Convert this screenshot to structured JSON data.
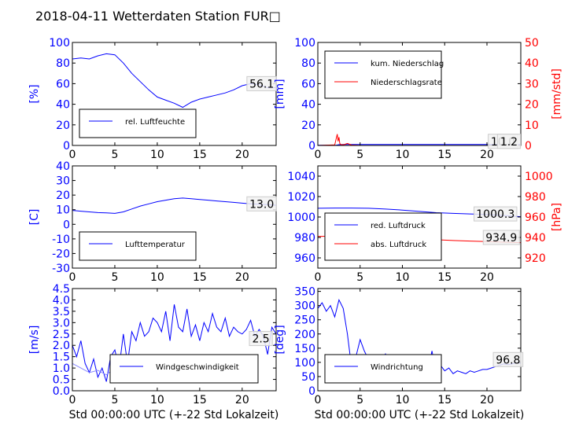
{
  "title": "2018-04-11 Wetterdaten Station FUR□",
  "xlabel": "Std 00:00:00 UTC (+-22 Std Lokalzeit)",
  "colors": {
    "left": "#0000ff",
    "right": "#ff0000",
    "light": "#8888ff"
  },
  "chart_data": [
    {
      "type": "line",
      "ylabel": "[%]",
      "xlim": [
        0,
        24
      ],
      "ylim": [
        0,
        100
      ],
      "x_ticks": [
        0,
        5,
        10,
        15,
        20
      ],
      "y_ticks": [
        0,
        20,
        40,
        60,
        80,
        100
      ],
      "legend": "bottom-left",
      "series": [
        {
          "name": "rel. Luftfeuchte",
          "axis": "left",
          "color": "#0000ff",
          "x": [
            0,
            1,
            2,
            3,
            4,
            5,
            6,
            7,
            8,
            9,
            10,
            11,
            12,
            13,
            14,
            15,
            16,
            17,
            18,
            19,
            20,
            21,
            22,
            23,
            24
          ],
          "y": [
            84,
            85,
            84,
            87,
            89,
            88,
            80,
            70,
            62,
            54,
            47,
            44,
            41,
            37,
            42,
            45,
            47,
            49,
            51,
            54,
            58,
            60,
            59,
            56,
            56
          ]
        }
      ],
      "annotations": [
        {
          "text": "56.1",
          "x": 22.3,
          "y": 60
        }
      ]
    },
    {
      "type": "line",
      "ylabel": "[mm]",
      "ylabel_right": "[mm/std]",
      "xlim": [
        0,
        24
      ],
      "ylim": [
        0,
        100
      ],
      "ylim_right": [
        0,
        50
      ],
      "x_ticks": [
        0,
        5,
        10,
        15,
        20
      ],
      "y_ticks": [
        0,
        20,
        40,
        60,
        80,
        100
      ],
      "y_ticks_right": [
        0,
        10,
        20,
        30,
        40,
        50
      ],
      "legend": "top-left",
      "series": [
        {
          "name": "kum. Niederschlag",
          "axis": "left",
          "color": "#0000ff",
          "x": [
            0,
            2.2,
            2.5,
            3,
            5,
            10,
            15,
            20,
            24
          ],
          "y": [
            0.2,
            0.3,
            0.8,
            1.0,
            1.0,
            1.0,
            1.0,
            1.0,
            1.0
          ]
        },
        {
          "name": "Niederschlagsrate",
          "axis": "right",
          "color": "#ff0000",
          "x": [
            0,
            2.0,
            2.3,
            2.4,
            2.5,
            2.6,
            2.7,
            3.0,
            3.5,
            4.0,
            5.0,
            10,
            24
          ],
          "y": [
            0,
            0.3,
            5.5,
            2.0,
            4.0,
            1.0,
            0.5,
            0.3,
            1.0,
            0.2,
            0,
            0,
            0
          ]
        }
      ],
      "annotations": [
        {
          "text": "10.0",
          "x": 21.9,
          "y": 4
        },
        {
          "text": "1.2",
          "x": 22.6,
          "y": 4
        }
      ]
    },
    {
      "type": "line",
      "ylabel": "[C]",
      "xlim": [
        0,
        24
      ],
      "ylim": [
        -30,
        40
      ],
      "x_ticks": [
        0,
        5,
        10,
        15,
        20
      ],
      "y_ticks": [
        -30,
        -20,
        -10,
        0,
        10,
        20,
        30,
        40
      ],
      "legend": "bottom-left",
      "series": [
        {
          "name": "Lufttemperatur",
          "axis": "left",
          "color": "#0000ff",
          "x": [
            0,
            1,
            2,
            3,
            4,
            5,
            6,
            7,
            8,
            9,
            10,
            11,
            12,
            13,
            14,
            15,
            16,
            17,
            18,
            19,
            20,
            21,
            22,
            23,
            24
          ],
          "y": [
            9.5,
            9.0,
            8.5,
            8.0,
            7.8,
            7.5,
            8.5,
            10.5,
            12.5,
            14.0,
            15.5,
            16.5,
            17.5,
            18.0,
            17.5,
            17.0,
            16.5,
            16.0,
            15.5,
            15.0,
            14.5,
            14.0,
            13.8,
            13.5,
            13.0
          ]
        }
      ],
      "annotations": [
        {
          "text": "13.0",
          "x": 22.3,
          "y": 14
        }
      ]
    },
    {
      "type": "line",
      "ylabel_right": "[hPa]",
      "xlim": [
        0,
        24
      ],
      "ylim": [
        950,
        1050
      ],
      "ylim_right": [
        910,
        1010
      ],
      "x_ticks": [
        0,
        5,
        10,
        15,
        20
      ],
      "y_ticks": [
        960,
        980,
        1000,
        1020,
        1040
      ],
      "y_ticks_right": [
        920,
        940,
        960,
        980,
        1000
      ],
      "legend": "bottom-left",
      "series": [
        {
          "name": "red. Luftdruck",
          "axis": "left",
          "color": "#0000ff",
          "x": [
            0,
            2,
            4,
            6,
            8,
            10,
            12,
            14,
            16,
            18,
            20,
            22,
            24
          ],
          "y": [
            1008.5,
            1008.8,
            1008.8,
            1008.5,
            1007.8,
            1006.8,
            1005.5,
            1004.2,
            1003.5,
            1003.0,
            1002.5,
            1001.5,
            1000.3
          ]
        },
        {
          "name": "abs. Luftdruck",
          "axis": "right",
          "color": "#ff0000",
          "x": [
            0,
            2,
            4,
            6,
            8,
            10,
            12,
            14,
            16,
            18,
            20,
            22,
            24
          ],
          "y": [
            941.0,
            941.3,
            941.2,
            940.8,
            940.2,
            939.5,
            938.5,
            937.8,
            937.0,
            936.5,
            935.9,
            935.4,
            934.9
          ]
        }
      ],
      "annotations": [
        {
          "text": "1000.3",
          "x": 21.0,
          "y": 1003
        },
        {
          "text": "934.9",
          "x": 21.7,
          "y": 980
        }
      ]
    },
    {
      "type": "line",
      "ylabel": "[m/s]",
      "xlim": [
        0,
        24
      ],
      "ylim": [
        0,
        4.5
      ],
      "x_ticks": [
        0,
        5,
        10,
        15,
        20
      ],
      "y_ticks": [
        0.0,
        0.5,
        1.0,
        1.5,
        2.0,
        2.5,
        3.0,
        3.5,
        4.0,
        4.5
      ],
      "legend": "bottom-right",
      "series": [
        {
          "name": "Windgeschwindigkeit",
          "axis": "left",
          "color": "#0000ff",
          "x": [
            0,
            0.5,
            1,
            1.5,
            2,
            2.5,
            3,
            3.5,
            4,
            4.5,
            5,
            5.5,
            6,
            6.5,
            7,
            7.5,
            8,
            8.5,
            9,
            9.5,
            10,
            10.5,
            11,
            11.5,
            12,
            12.5,
            13,
            13.5,
            14,
            14.5,
            15,
            15.5,
            16,
            16.5,
            17,
            17.5,
            18,
            18.5,
            19,
            19.5,
            20,
            20.5,
            21,
            21.5,
            22,
            22.5,
            23,
            23.5,
            24
          ],
          "y": [
            2.0,
            1.5,
            2.2,
            1.2,
            0.8,
            1.4,
            0.6,
            1.0,
            0.4,
            1.5,
            1.8,
            1.0,
            2.5,
            1.2,
            2.6,
            2.2,
            3.0,
            2.4,
            2.6,
            3.2,
            3.0,
            2.6,
            3.5,
            2.2,
            3.8,
            2.8,
            2.6,
            3.6,
            2.4,
            2.9,
            2.2,
            3.0,
            2.6,
            3.4,
            2.8,
            2.6,
            3.2,
            2.4,
            2.8,
            2.6,
            2.5,
            2.7,
            3.1,
            2.4,
            2.7,
            2.4,
            1.6,
            2.8,
            2.5
          ]
        },
        {
          "name": "",
          "axis": "left",
          "color": "#8888ff",
          "x": [
            0,
            1,
            2,
            3,
            4,
            5,
            6,
            6.5
          ],
          "y": [
            1.2,
            1.0,
            0.8,
            0.9,
            0.7,
            1.0,
            1.2,
            1.4
          ]
        }
      ],
      "annotations": [
        {
          "text": "2.5",
          "x": 22.2,
          "y": 2.3
        }
      ]
    },
    {
      "type": "line",
      "ylabel": "[deg]",
      "xlim": [
        0,
        24
      ],
      "ylim": [
        0,
        360
      ],
      "x_ticks": [
        0,
        5,
        10,
        15,
        20
      ],
      "y_ticks": [
        0,
        50,
        100,
        150,
        200,
        250,
        300,
        350
      ],
      "legend": "bottom-left",
      "series": [
        {
          "name": "Windrichtung",
          "axis": "left",
          "color": "#0000ff",
          "x": [
            0,
            0.5,
            1,
            1.5,
            2,
            2.5,
            3,
            3.5,
            4,
            4.5,
            5,
            5.5,
            6,
            6.5,
            7,
            7.5,
            8,
            8.5,
            9,
            9.5,
            10,
            10.5,
            11,
            11.5,
            12,
            12.5,
            13,
            13.5,
            14,
            14.5,
            15,
            15.5,
            16,
            16.5,
            17,
            17.5,
            18,
            18.5,
            19,
            19.5,
            20,
            20.5,
            21,
            21.5,
            22,
            22.5,
            23,
            23.5,
            24
          ],
          "y": [
            290,
            310,
            280,
            300,
            260,
            320,
            290,
            200,
            80,
            120,
            180,
            140,
            110,
            120,
            100,
            110,
            130,
            100,
            90,
            110,
            95,
            120,
            100,
            80,
            110,
            90,
            70,
            140,
            60,
            90,
            70,
            80,
            60,
            70,
            65,
            60,
            70,
            65,
            70,
            75,
            75,
            80,
            85,
            90,
            95,
            92,
            95,
            98,
            97
          ]
        },
        {
          "name": "",
          "axis": "left",
          "color": "#8888ff",
          "x": [
            3,
            4,
            5,
            6,
            7,
            8,
            9,
            10,
            11,
            12,
            13,
            14
          ],
          "y": [
            100,
            110,
            105,
            95,
            100,
            90,
            85,
            95,
            80,
            90,
            75,
            70
          ]
        }
      ],
      "annotations": [
        {
          "text": "96.8",
          "x": 22.5,
          "y": 110
        }
      ]
    }
  ]
}
